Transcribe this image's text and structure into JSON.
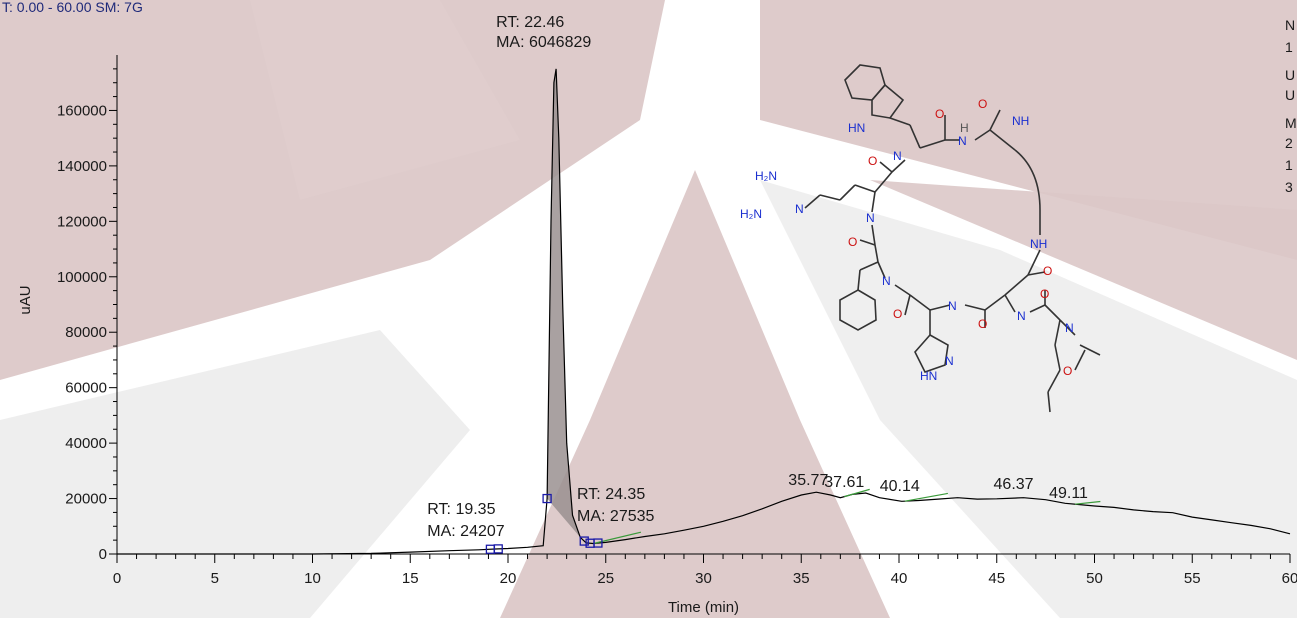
{
  "header": {
    "text": "T: 0.00 - 60.00   SM: 7G"
  },
  "side_text": [
    "N",
    "1",
    "U",
    "U",
    "M",
    "2",
    "1",
    "3"
  ],
  "colors": {
    "watermark": "#dcc8c8",
    "trace": "#000000",
    "peak_fill": "#9a9090",
    "marker": "#1a1aa8",
    "baseline": "#3a9a3a",
    "nitrogen": "#1a2fd0",
    "oxygen": "#cc1111"
  },
  "chart_data": {
    "type": "line",
    "xlabel": "Time (min)",
    "ylabel": "uAU",
    "xlim": [
      0,
      60
    ],
    "ylim": [
      0,
      180000
    ],
    "xticks": [
      0,
      5,
      10,
      15,
      20,
      25,
      30,
      35,
      40,
      45,
      50,
      55,
      60
    ],
    "yticks": [
      0,
      20000,
      40000,
      60000,
      80000,
      100000,
      120000,
      140000,
      160000
    ],
    "series": [
      {
        "x": [
          0,
          5,
          10,
          13,
          15,
          17,
          18.5,
          19.35,
          20,
          21,
          21.8,
          22.0,
          22.2,
          22.35,
          22.46,
          22.6,
          22.8,
          23.0,
          23.3,
          23.7,
          24.0,
          24.35,
          25,
          26,
          27,
          28,
          29,
          30,
          31,
          32,
          33,
          34,
          35,
          35.77,
          36.5,
          37,
          37.61,
          38.3,
          39,
          40.14,
          41,
          42,
          43,
          44,
          45,
          46.37,
          47.5,
          48.5,
          49.11,
          50,
          51,
          52,
          53,
          54,
          55,
          56,
          57,
          58,
          59,
          60
        ],
        "y": [
          0,
          0,
          0,
          200,
          700,
          1200,
          1500,
          1800,
          2000,
          2400,
          3000,
          20000,
          120000,
          170000,
          175000,
          150000,
          90000,
          40000,
          14000,
          6000,
          4000,
          3800,
          4200,
          5200,
          6300,
          7300,
          8600,
          10000,
          11800,
          13800,
          16300,
          19000,
          21300,
          22300,
          21300,
          20300,
          21500,
          22000,
          20300,
          19000,
          19300,
          19800,
          20300,
          19800,
          19900,
          20300,
          19600,
          18300,
          17900,
          17300,
          16800,
          15900,
          15300,
          14900,
          13300,
          12300,
          11300,
          10300,
          9100,
          7300
        ]
      }
    ],
    "filled_peak": {
      "x_start": 22.0,
      "x_end": 23.7
    },
    "annotations": [
      {
        "label": "RT: 22.46",
        "label2": "MA: 6046829",
        "x": 22.46,
        "y": 175000
      },
      {
        "label": "RT: 19.35",
        "label2": "MA: 24207",
        "x": 19.35,
        "y": 1800
      },
      {
        "label": "RT: 24.35",
        "label2": "MA: 27535",
        "x": 24.35,
        "y": 3800
      },
      {
        "label": "35.77",
        "x": 35.77,
        "y": 22300
      },
      {
        "label": "37.61",
        "x": 37.61,
        "y": 21500
      },
      {
        "label": "40.14",
        "x": 40.14,
        "y": 19000
      },
      {
        "label": "46.37",
        "x": 46.37,
        "y": 20300
      },
      {
        "label": "49.11",
        "x": 49.11,
        "y": 17900
      }
    ],
    "markers": [
      19.1,
      19.5,
      22.0,
      23.9,
      24.2,
      24.6
    ],
    "baselines": [
      {
        "x": [
          24.4,
          26.8
        ]
      },
      {
        "x": [
          37.2,
          38.5
        ]
      },
      {
        "x": [
          40.3,
          42.5
        ]
      },
      {
        "x": [
          49.0,
          50.3
        ]
      }
    ],
    "grid": false
  }
}
